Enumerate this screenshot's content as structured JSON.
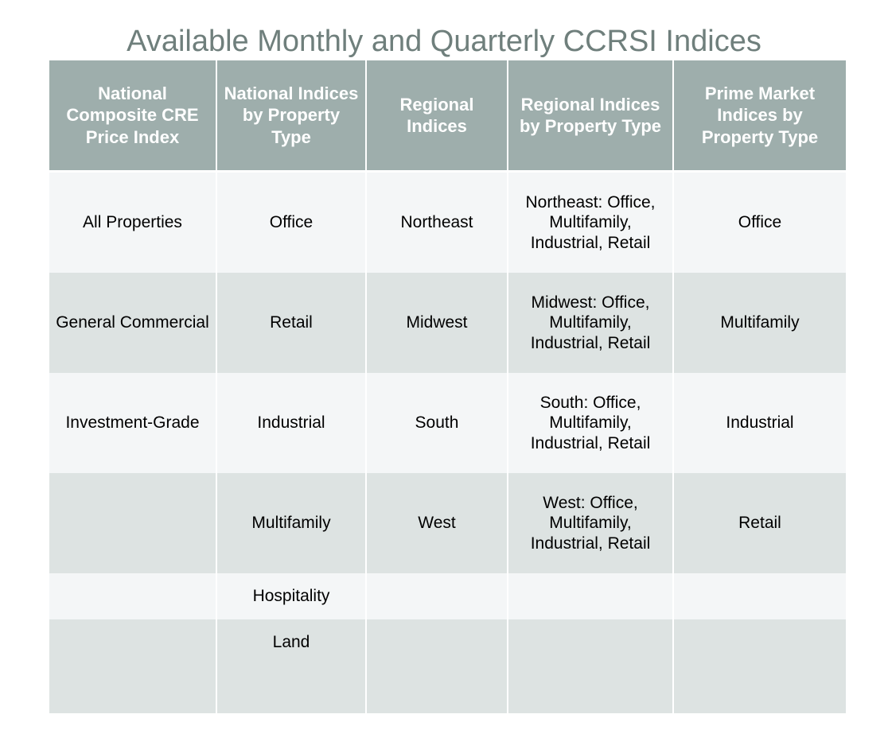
{
  "title": "Available Monthly and Quarterly CCRSI Indices",
  "colors": {
    "title": "#6f7f7c",
    "header_bg": "#9eaeac",
    "row_light": "#f4f6f7",
    "row_dark": "#dde3e2"
  },
  "table": {
    "headers": [
      "National Composite CRE Price Index",
      "National Indices by Property Type",
      "Regional Indices",
      "Regional Indices by Property Type",
      "Prime Market Indices by Property Type"
    ],
    "rows": [
      [
        "All Properties",
        "Office",
        "Northeast",
        "Northeast: Office, Multifamily, Industrial, Retail",
        "Office"
      ],
      [
        "General Commercial",
        "Retail",
        "Midwest",
        "Midwest: Office, Multifamily, Industrial, Retail",
        "Multifamily"
      ],
      [
        "Investment-Grade",
        "Industrial",
        "South",
        "South: Office, Multifamily, Industrial, Retail",
        "Industrial"
      ],
      [
        "",
        "Multifamily",
        "West",
        "West: Office, Multifamily, Industrial, Retail",
        "Retail"
      ],
      [
        "",
        "Hospitality",
        "",
        "",
        ""
      ],
      [
        "",
        "Land",
        "",
        "",
        ""
      ],
      [
        "",
        "",
        "",
        "",
        ""
      ]
    ]
  }
}
